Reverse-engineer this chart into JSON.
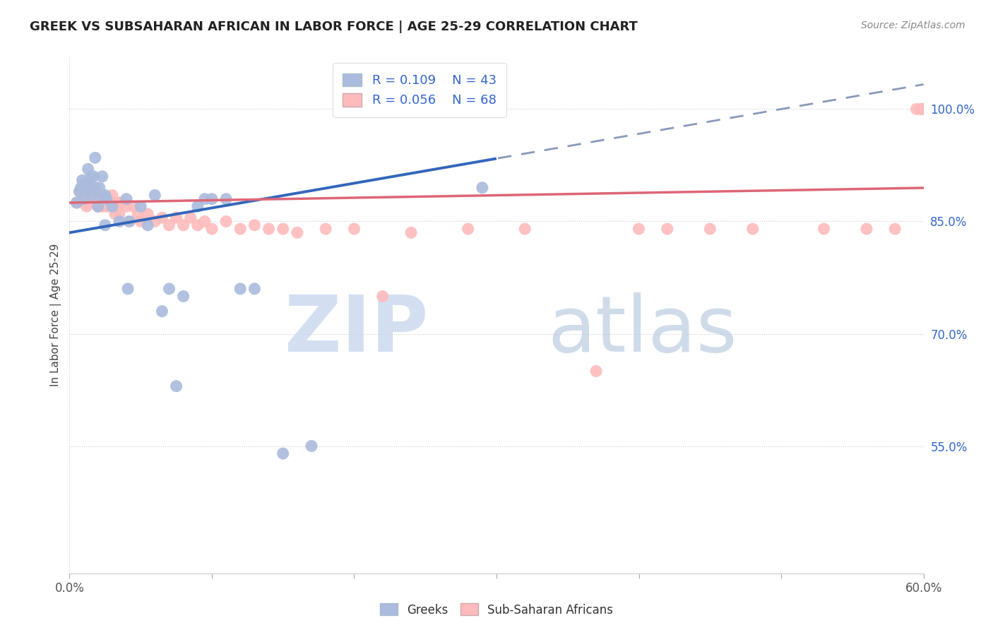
{
  "title": "GREEK VS SUBSAHARAN AFRICAN IN LABOR FORCE | AGE 25-29 CORRELATION CHART",
  "source": "Source: ZipAtlas.com",
  "ylabel": "In Labor Force | Age 25-29",
  "legend_label1": "Greeks",
  "legend_label2": "Sub-Saharan Africans",
  "R1": 0.109,
  "N1": 43,
  "R2": 0.056,
  "N2": 68,
  "color_blue": "#AABBDD",
  "color_blue_line": "#3366BB",
  "color_blue_dash": "#8899BB",
  "color_pink": "#FFBBBB",
  "color_pink_line": "#DD6677",
  "color_axis_label": "#3366CC",
  "xmin": 0.0,
  "xmax": 0.6,
  "ymin": 0.38,
  "ymax": 1.07,
  "right_yticks": [
    1.0,
    0.85,
    0.7,
    0.55
  ],
  "right_ytick_labels": [
    "100.0%",
    "85.0%",
    "70.0%",
    "55.0%"
  ],
  "greeks_x": [
    0.005,
    0.007,
    0.008,
    0.009,
    0.01,
    0.01,
    0.012,
    0.013,
    0.013,
    0.015,
    0.015,
    0.016,
    0.017,
    0.018,
    0.018,
    0.02,
    0.021,
    0.022,
    0.023,
    0.025,
    0.025,
    0.026,
    0.03,
    0.035,
    0.04,
    0.041,
    0.042,
    0.05,
    0.055,
    0.06,
    0.065,
    0.07,
    0.075,
    0.08,
    0.09,
    0.095,
    0.1,
    0.11,
    0.12,
    0.13,
    0.15,
    0.17,
    0.29
  ],
  "greeks_y": [
    0.875,
    0.89,
    0.895,
    0.905,
    0.88,
    0.9,
    0.895,
    0.9,
    0.92,
    0.895,
    0.91,
    0.885,
    0.91,
    0.895,
    0.935,
    0.87,
    0.895,
    0.885,
    0.91,
    0.885,
    0.845,
    0.88,
    0.87,
    0.85,
    0.88,
    0.76,
    0.85,
    0.87,
    0.845,
    0.885,
    0.73,
    0.76,
    0.63,
    0.75,
    0.87,
    0.88,
    0.88,
    0.88,
    0.76,
    0.76,
    0.54,
    0.55,
    0.895
  ],
  "subsaharan_x": [
    0.005,
    0.007,
    0.008,
    0.01,
    0.01,
    0.012,
    0.014,
    0.015,
    0.016,
    0.018,
    0.018,
    0.019,
    0.02,
    0.02,
    0.022,
    0.023,
    0.024,
    0.025,
    0.026,
    0.027,
    0.03,
    0.03,
    0.032,
    0.035,
    0.035,
    0.036,
    0.04,
    0.042,
    0.045,
    0.048,
    0.05,
    0.055,
    0.06,
    0.065,
    0.07,
    0.075,
    0.08,
    0.085,
    0.09,
    0.095,
    0.1,
    0.11,
    0.12,
    0.13,
    0.14,
    0.15,
    0.16,
    0.18,
    0.2,
    0.22,
    0.24,
    0.28,
    0.32,
    0.37,
    0.4,
    0.42,
    0.45,
    0.48,
    0.53,
    0.56,
    0.58,
    0.595,
    0.598,
    0.6,
    0.6,
    0.6,
    0.6,
    0.6
  ],
  "subsaharan_y": [
    0.875,
    0.89,
    0.878,
    0.89,
    0.875,
    0.87,
    0.88,
    0.885,
    0.875,
    0.885,
    0.875,
    0.88,
    0.87,
    0.88,
    0.878,
    0.87,
    0.875,
    0.88,
    0.87,
    0.88,
    0.875,
    0.885,
    0.86,
    0.875,
    0.86,
    0.875,
    0.87,
    0.85,
    0.87,
    0.86,
    0.85,
    0.86,
    0.85,
    0.855,
    0.845,
    0.855,
    0.845,
    0.855,
    0.845,
    0.85,
    0.84,
    0.85,
    0.84,
    0.845,
    0.84,
    0.84,
    0.835,
    0.84,
    0.84,
    0.75,
    0.835,
    0.84,
    0.84,
    0.65,
    0.84,
    0.84,
    0.84,
    0.84,
    0.84,
    0.84,
    0.84,
    1.0,
    1.0,
    1.0,
    1.0,
    1.0,
    1.0,
    1.0
  ]
}
